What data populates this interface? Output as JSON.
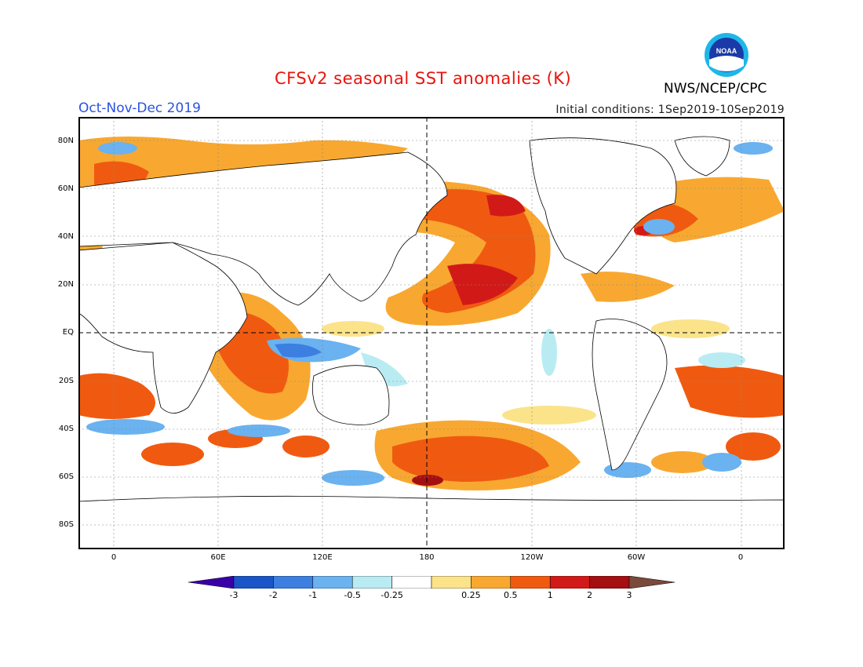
{
  "title": "CFSv2 seasonal SST anomalies (K)",
  "season": "Oct-Nov-Dec 2019",
  "initial_conditions": "Initial conditions: 1Sep2019-10Sep2019",
  "agency": "NWS/NCEP/CPC",
  "logo_text": "NOAA",
  "lat_labels": [
    "80N",
    "60N",
    "40N",
    "20N",
    "EQ",
    "20S",
    "40S",
    "60S",
    "80S"
  ],
  "lon_labels": [
    "0",
    "60E",
    "120E",
    "180",
    "120W",
    "60W",
    "0"
  ],
  "colorbar": {
    "labels": [
      "-3",
      "-2",
      "-1",
      "-0.5",
      "-0.25",
      "0.25",
      "0.5",
      "1",
      "2",
      "3"
    ],
    "colors": [
      "#3a00a8",
      "#1a55c8",
      "#3c7fe0",
      "#6ab2f0",
      "#b8ecf2",
      "#ffffff",
      "#fbe38a",
      "#f8a830",
      "#f05a10",
      "#d11a18",
      "#a40f12",
      "#7a4a3a"
    ]
  }
}
